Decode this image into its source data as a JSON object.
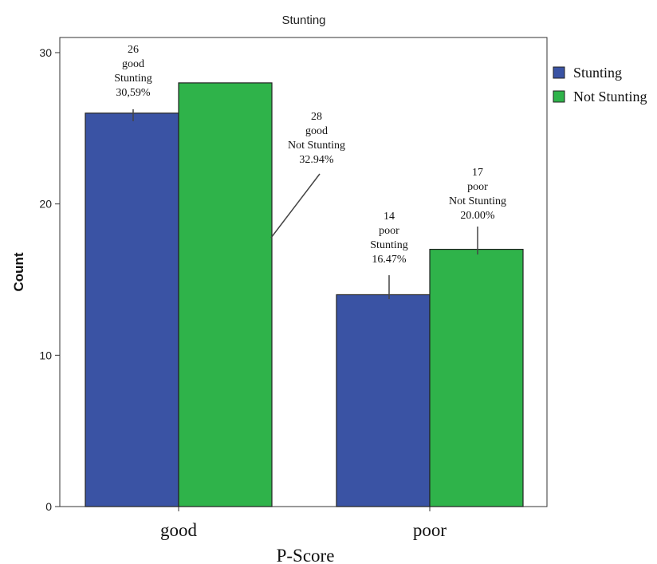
{
  "chart_data": {
    "type": "bar",
    "title": "Stunting",
    "xlabel": "P-Score",
    "ylabel": "Count",
    "categories": [
      "good",
      "poor"
    ],
    "ylim": [
      0,
      31
    ],
    "yticks": [
      "0",
      "10",
      "20",
      "30"
    ],
    "grid": false,
    "legend_position": "right",
    "series": [
      {
        "name": "Stunting",
        "color": "#3a53a4",
        "values": [
          26,
          14
        ]
      },
      {
        "name": "Not Stunting",
        "color": "#2fb34a",
        "values": [
          28,
          17
        ]
      }
    ],
    "annotations": [
      {
        "lines": [
          "26",
          "good",
          "Stunting",
          "30,59%"
        ]
      },
      {
        "lines": [
          "28",
          "good",
          "Not Stunting",
          "32.94%"
        ]
      },
      {
        "lines": [
          "14",
          "poor",
          "Stunting",
          "16.47%"
        ]
      },
      {
        "lines": [
          "17",
          "poor",
          "Not Stunting",
          "20.00%"
        ]
      }
    ]
  }
}
